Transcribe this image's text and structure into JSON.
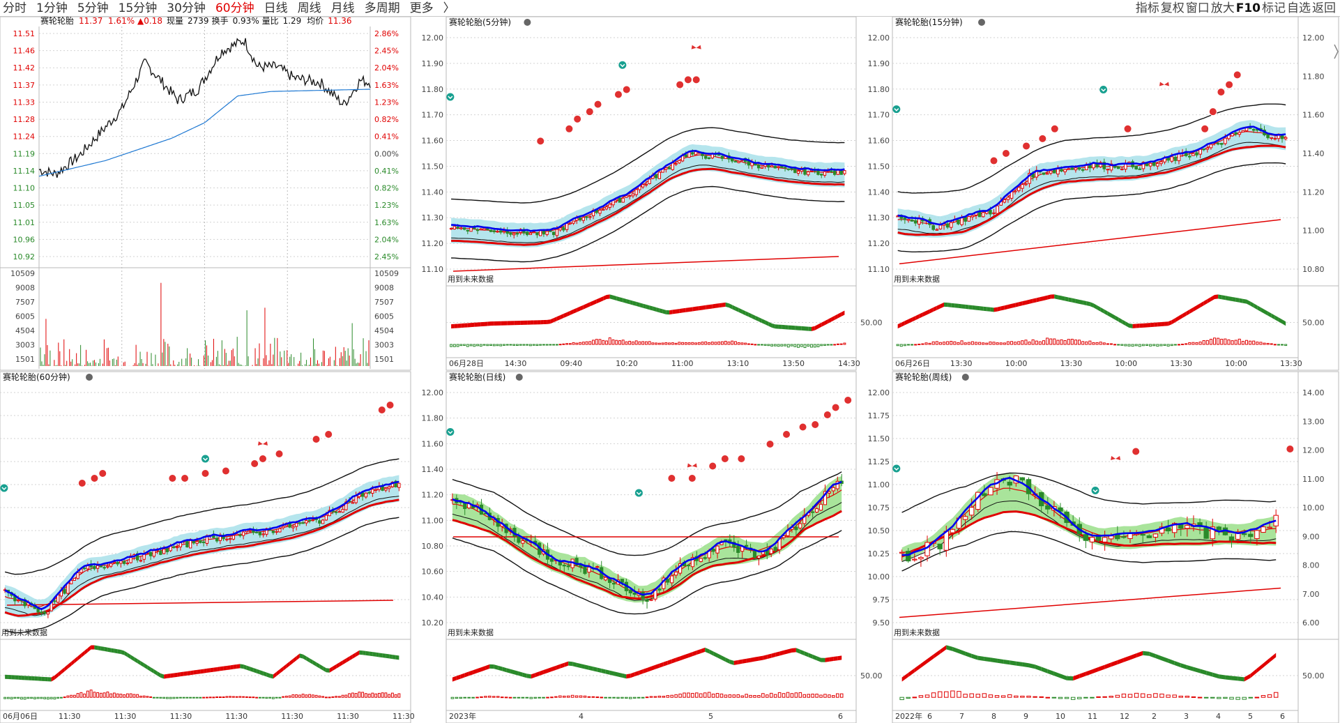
{
  "toolbar": {
    "periods": [
      "分时",
      "1分钟",
      "5分钟",
      "15分钟",
      "30分钟",
      "60分钟",
      "日线",
      "周线",
      "月线",
      "多周期",
      "更多"
    ],
    "active_period": "60分钟",
    "more_arrow": "〉",
    "tools": [
      "指标",
      "复权",
      "窗口",
      "放大",
      "F10",
      "标记",
      "自选",
      "返回"
    ]
  },
  "colors": {
    "up": "#e00000",
    "down": "#2a8a2a",
    "grid": "#cfcfcf",
    "axis": "#444",
    "accent_blue": "#0000ee",
    "cloud_cyan": "#a8e0ea",
    "cloud_green": "#9adf8a"
  },
  "icons": {
    "signal_up": "red-bubble-icon",
    "signal_down": "green-chevron-icon",
    "butterfly": "butterfly-icon",
    "arrow_up": "red-arrow-up-icon",
    "arrow_down": "green-arrow-down-icon"
  },
  "panels": {
    "intraday": {
      "title": "赛轮轮胎",
      "last": "11.37",
      "pct": "1.61%",
      "change": "▲0.18",
      "vol_label": "现量",
      "vol": "2739",
      "turnover_label": "换手",
      "turnover": "0.93%",
      "ratio_label": "量比",
      "ratio": "1.29",
      "avg_label": "均价",
      "avg": "11.36",
      "price_ticks": [
        "11.51",
        "11.46",
        "11.42",
        "11.37",
        "11.33",
        "11.28",
        "11.24",
        "11.19",
        "11.14",
        "11.10",
        "11.05",
        "11.01",
        "10.96",
        "10.92"
      ],
      "pct_ticks": [
        "2.86%",
        "2.45%",
        "2.04%",
        "1.63%",
        "1.23%",
        "0.82%",
        "0.41%",
        "0.00%",
        "0.41%",
        "0.82%",
        "1.23%",
        "1.63%",
        "2.04%",
        "2.45%"
      ],
      "vol_ticks": [
        "10509",
        "9008",
        "7507",
        "6005",
        "4504",
        "3003",
        "1501"
      ]
    },
    "m5": {
      "title": "赛轮轮胎(5分钟)",
      "price_ticks": [
        "12.00",
        "11.90",
        "11.80",
        "11.70",
        "11.60",
        "11.50",
        "11.40",
        "11.30",
        "11.20",
        "11.10"
      ],
      "future_label": "用到未来数据",
      "osc_tick": "50.00",
      "x_ticks": [
        "06月28日",
        "14:30",
        "09:40",
        "10:20",
        "11:00",
        "13:10",
        "13:50",
        "14:30"
      ]
    },
    "m15": {
      "title": "赛轮轮胎(15分钟)",
      "price_ticks": [
        "12.00",
        "11.80",
        "11.60",
        "11.40",
        "11.20",
        "11.00",
        "10.80"
      ],
      "future_label": "用到未来数据",
      "osc_tick": "50.00",
      "x_ticks": [
        "06月26日",
        "13:30",
        "10:00",
        "13:30",
        "10:00",
        "13:30",
        "10:00",
        "13:30"
      ]
    },
    "m60": {
      "title": "赛轮轮胎(60分钟)",
      "future_label": "用到未来数据",
      "x_ticks": [
        "06月06日",
        "11:30",
        "11:30",
        "11:30",
        "11:30",
        "11:30",
        "11:30",
        "11:30"
      ]
    },
    "day": {
      "title": "赛轮轮胎(日线)",
      "price_ticks": [
        "12.00",
        "11.80",
        "11.60",
        "11.40",
        "11.20",
        "11.00",
        "10.80",
        "10.60",
        "10.40",
        "10.20"
      ],
      "future_label": "用到未来数据",
      "osc_tick": "50.00",
      "x_ticks": [
        "2023年",
        "4",
        "5",
        "6"
      ]
    },
    "week": {
      "title": "赛轮轮胎(周线)",
      "price_ticks_left": [
        "12.00",
        "11.75",
        "11.50",
        "11.25",
        "11.00",
        "10.75",
        "10.50",
        "10.25",
        "10.00",
        "9.75",
        "9.50"
      ],
      "price_ticks_right": [
        "14.00",
        "13.00",
        "12.00",
        "11.00",
        "10.00",
        "9.00",
        "8.00",
        "7.00",
        "6.00"
      ],
      "future_label": "用到未来数据",
      "osc_tick": "50.00",
      "x_ticks": [
        "2022年",
        "6",
        "7",
        "8",
        "9",
        "10",
        "11",
        "12",
        "2",
        "3",
        "4",
        "5",
        "6"
      ]
    }
  }
}
